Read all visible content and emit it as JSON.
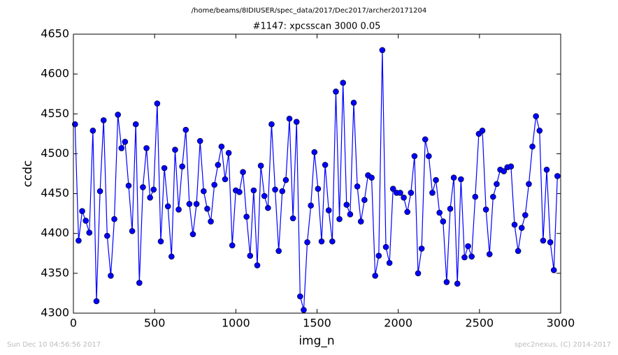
{
  "chart_data": {
    "type": "line",
    "suptitle": "/home/beams/8IDIUSER/spec_data/2017/Dec2017/archer20171204",
    "title": "#1147: xpcsscan 3000 0.05",
    "x_label": "img_n",
    "y_label": "ccdc",
    "footer_left": "Sun Dec 10 04:56:56 2017",
    "footer_right": "spec2nexus, (C) 2014-2017",
    "xlim": [
      0,
      3000
    ],
    "xticks": [
      0,
      500,
      1000,
      1500,
      2000,
      2500,
      3000
    ],
    "ylim": [
      4300,
      4650
    ],
    "yticks": [
      4300,
      4350,
      4400,
      4450,
      4500,
      4550,
      4600,
      4650
    ],
    "x": [
      10,
      32,
      54,
      76,
      98,
      120,
      142,
      164,
      186,
      208,
      230,
      252,
      274,
      296,
      318,
      340,
      362,
      384,
      406,
      428,
      450,
      472,
      494,
      516,
      538,
      560,
      582,
      604,
      626,
      648,
      670,
      692,
      714,
      736,
      758,
      780,
      802,
      824,
      846,
      868,
      890,
      912,
      934,
      956,
      978,
      1000,
      1022,
      1044,
      1066,
      1088,
      1110,
      1132,
      1154,
      1176,
      1198,
      1220,
      1242,
      1264,
      1286,
      1308,
      1330,
      1352,
      1374,
      1396,
      1418,
      1440,
      1462,
      1484,
      1506,
      1528,
      1550,
      1572,
      1594,
      1616,
      1638,
      1660,
      1682,
      1704,
      1726,
      1748,
      1770,
      1792,
      1814,
      1836,
      1858,
      1880,
      1902,
      1924,
      1946,
      1968,
      1990,
      2012,
      2034,
      2056,
      2078,
      2100,
      2122,
      2144,
      2166,
      2188,
      2210,
      2232,
      2254,
      2276,
      2298,
      2320,
      2342,
      2364,
      2386,
      2408,
      2430,
      2452,
      2474,
      2496,
      2518,
      2540,
      2562,
      2584,
      2606,
      2628,
      2650,
      2672,
      2694,
      2716,
      2738,
      2760,
      2782,
      2804,
      2826,
      2848,
      2870,
      2892,
      2914,
      2936,
      2958,
      2980
    ],
    "series": [
      {
        "name": "ccdc",
        "color": "#0000ff",
        "values": [
          4537,
          4391,
          4428,
          4416,
          4401,
          4529,
          4315,
          4453,
          4542,
          4397,
          4347,
          4418,
          4549,
          4507,
          4515,
          4460,
          4403,
          4537,
          4338,
          4458,
          4507,
          4445,
          4455,
          4563,
          4390,
          4482,
          4434,
          4371,
          4505,
          4430,
          4484,
          4530,
          4437,
          4399,
          4437,
          4516,
          4453,
          4431,
          4415,
          4461,
          4486,
          4509,
          4468,
          4501,
          4385,
          4454,
          4452,
          4477,
          4421,
          4372,
          4454,
          4360,
          4485,
          4447,
          4432,
          4537,
          4455,
          4378,
          4453,
          4467,
          4544,
          4419,
          4540,
          4321,
          4304,
          4389,
          4435,
          4502,
          4456,
          4390,
          4486,
          4429,
          4390,
          4578,
          4418,
          4589,
          4436,
          4424,
          4564,
          4459,
          4415,
          4442,
          4473,
          4470,
          4347,
          4372,
          4630,
          4383,
          4363,
          4456,
          4451,
          4451,
          4445,
          4427,
          4451,
          4497,
          4350,
          4381,
          4518,
          4497,
          4451,
          4467,
          4426,
          4415,
          4339,
          4431,
          4470,
          4337,
          4468,
          4370,
          4384,
          4371,
          4446,
          4525,
          4529,
          4430,
          4374,
          4446,
          4462,
          4480,
          4478,
          4483,
          4484,
          4411,
          4378,
          4407,
          4423,
          4462,
          4509,
          4547,
          4529,
          4391,
          4480,
          4389,
          4354,
          4472
        ]
      }
    ]
  }
}
